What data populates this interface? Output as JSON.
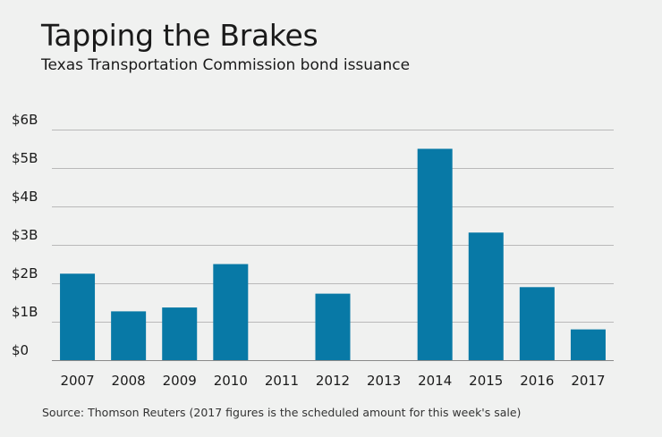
{
  "title": "Tapping the Brakes",
  "subtitle": "Texas Transportation Commission bond issuance",
  "source": "Source: Thomson Reuters (2017 figures is the scheduled amount for this week's sale)",
  "colors": {
    "bar": "#0879a6",
    "grid": "#b9b9b9",
    "background": "#f0f1f0"
  },
  "chart_data": {
    "type": "bar",
    "title": "Tapping the Brakes",
    "subtitle": "Texas Transportation Commission bond issuance",
    "xlabel": "",
    "ylabel": "",
    "categories": [
      "2007",
      "2008",
      "2009",
      "2010",
      "2011",
      "2012",
      "2013",
      "2014",
      "2015",
      "2016",
      "2017"
    ],
    "values": [
      2.25,
      1.27,
      1.37,
      2.5,
      0,
      1.73,
      0,
      5.5,
      3.32,
      1.9,
      0.8
    ],
    "unit": "billions of dollars",
    "ylim": [
      0,
      6
    ],
    "yticks": [
      0,
      1,
      2,
      3,
      4,
      5,
      6
    ],
    "ytick_labels": [
      "$0",
      "$1B",
      "$2B",
      "$3B",
      "$4B",
      "$5B",
      "$6B"
    ],
    "grid": true,
    "legend": "none"
  }
}
